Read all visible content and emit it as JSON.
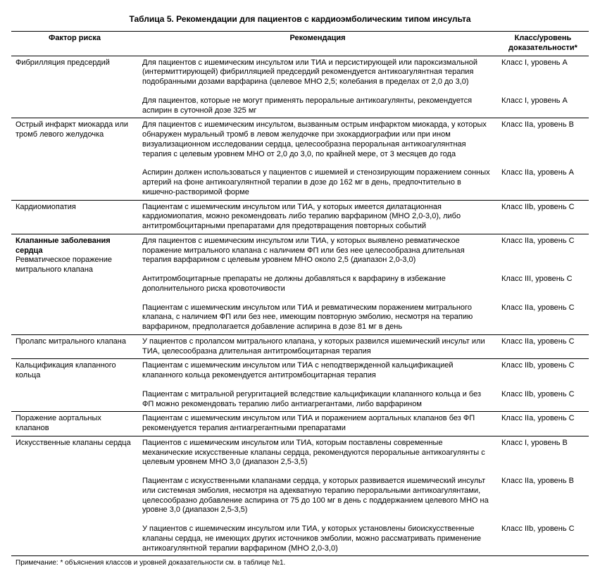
{
  "title": "Таблица 5. Рекомендации для пациентов с кардиоэмболическим типом инсульта",
  "headers": {
    "risk": "Фактор риска",
    "rec": "Рекомендация",
    "class": "Класс/уровень доказательности*"
  },
  "groups": [
    {
      "risk": "Фибрилляция предсердий",
      "rows": [
        {
          "rec": "Для пациентов с ишемическим инсультом или ТИА и персистирующей или пароксизмальной (интермиттирующей) фибрилляцией предсердий рекомендуется антикоагулянтная терапия подобранными дозами варфарина (целевое МНО 2,5; колебания в пределах от 2,0 до 3,0)",
          "cls": "Класс I, уровень A"
        },
        {
          "rec": "Для пациентов, которые не могут применять пероральные антикоагулянты, рекомендуется аспирин в суточной дозе 325 мг",
          "cls": "Класс I, уровень A"
        }
      ]
    },
    {
      "risk": "Острый инфаркт миокарда или тромб левого желудочка",
      "rows": [
        {
          "rec": "Для пациентов с ишемическим инсультом, вызванным острым инфарктом миокарда, у которых обнаружен муральный тромб в левом желудочке при эхокардиографии или при ином визуализационном исследовании сердца, целесообразна пероральная антикоагулянтная терапия с целевым уровнем МНО от 2,0 до 3,0, по крайней мере, от 3 месяцев до года",
          "cls": "Класс IIa, уровень B"
        },
        {
          "rec": "Аспирин должен использоваться у пациентов с ишемией и стенозирующим поражением сонных артерий на фоне антикоагулянтной терапии в дозе до 162 мг в день, предпочтительно в кишечно-растворимой форме",
          "cls": "Класс IIa, уровень A"
        }
      ]
    },
    {
      "risk": "Кардиомиопатия",
      "rows": [
        {
          "rec": "Пациентам с ишемическим инсультом или ТИА, у которых имеется дилатационная кардиомиопатия, можно рекомендовать либо терапию варфарином (МНО 2,0-3,0), либо антитромбоцитарными препаратами для предотвращения повторных событий",
          "cls": "Класс IIb, уровень C"
        }
      ]
    },
    {
      "riskHead": "Клапанные заболевания сердца",
      "risk": "Ревматическое поражение митрального клапана",
      "rows": [
        {
          "rec": "Для пациентов с ишемическим инсультом или ТИА, у которых выявлено ревматическое поражение митрального клапана с наличием ФП или без нее целесообразна длительная терапия варфарином с целевым уровнем МНО около 2,5 (диапазон 2,0-3,0)",
          "cls": "Класс IIa, уровень C"
        },
        {
          "rec": "Антитромбоцитарные препараты не должны добавляться к варфарину в избежание дополнительного риска кровоточивости",
          "cls": "Класс III, уровень C"
        },
        {
          "rec": "Пациентам с ишемическим инсультом или ТИА и ревматическим поражением митрального клапана, с наличием ФП или без нее, имеющим повторную эмболию, несмотря на терапию варфарином, предполагается добавление аспирина в дозе 81 мг в день",
          "cls": "Класс IIa, уровень C"
        }
      ]
    },
    {
      "risk": "Пролапс митрального клапана",
      "rows": [
        {
          "rec": "У пациентов с пролапсом митрального клапана, у которых развился ишемический инсульт или ТИА, целесообразна длительная антитромбоцитарная терапия",
          "cls": "Класс IIa, уровень C"
        }
      ]
    },
    {
      "risk": "Кальцификация клапанного кольца",
      "rows": [
        {
          "rec": "Пациентам с ишемическим инсультом или ТИА с неподтвержденной кальцификацией клапанного кольца рекомендуется антитромбоцитарная терапия",
          "cls": "Класс IIb, уровень C"
        },
        {
          "rec": "Пациентам с митральной регургитацией вследствие кальцификации клапанного кольца и без ФП можно рекомендовать терапию либо антиагрегантами, либо варфарином",
          "cls": "Класс IIb, уровень C"
        }
      ]
    },
    {
      "risk": "Поражение аортальных клапанов",
      "rows": [
        {
          "rec": "Пациентам с ишемическим инсультом или ТИА и поражением аортальных клапанов без ФП рекомендуется терапия антиагрегантными препаратами",
          "cls": "Класс IIa, уровень C"
        }
      ]
    },
    {
      "risk": "Искусственные клапаны сердца",
      "rows": [
        {
          "rec": "Пациентов с ишемическим инсультом или ТИА, которым поставлены современные механические искусственные клапаны сердца, рекомендуются пероральные антикоагулянты с целевым уровнем МНО 3,0 (диапазон 2,5-3,5)",
          "cls": "Класс I, уровень B"
        },
        {
          "rec": "Пациентам с искусственными клапанами сердца, у которых развивается ишемический инсульт или системная эмболия, несмотря на адекватную терапию пероральными антикоагулянтами, целесообразно добавление аспирина от 75 до 100 мг в день с поддержанием целевого МНО на уровне 3,0 (диапазон 2,5-3,5)",
          "cls": "Класс IIa, уровень B"
        },
        {
          "rec": "У пациентов с ишемическим инсультом или ТИА, у которых установлены биоискусственные клапаны сердца, не имеющих других источников эмболии, можно рассматривать применение антикоагулянтной терапии варфарином (МНО 2,0-3,0)",
          "cls": "Класс IIb, уровень C"
        }
      ]
    }
  ],
  "note": "Примечание: * объяснения классов и уровней доказательности см. в таблице №1."
}
